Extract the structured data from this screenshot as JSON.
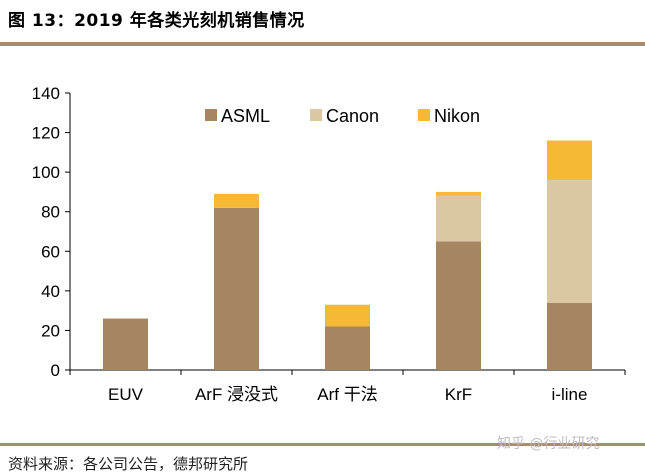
{
  "page": {
    "title": "图 13：2019 年各类光刻机销售情况",
    "source": "资料来源：各公司公告，德邦研究所",
    "watermark": "知乎 @行业研究"
  },
  "chart_data": {
    "type": "bar",
    "stacked": true,
    "categories": [
      "EUV",
      "ArF 浸没式",
      "Arf 干法",
      "KrF",
      "i-line"
    ],
    "series": [
      {
        "name": "ASML",
        "color": "#a68660",
        "values": [
          26,
          82,
          22,
          65,
          34
        ]
      },
      {
        "name": "Canon",
        "color": "#dbc8a3",
        "values": [
          0,
          0,
          0,
          23,
          62
        ]
      },
      {
        "name": "Nikon",
        "color": "#f5b935",
        "values": [
          0,
          7,
          11,
          2,
          20
        ]
      }
    ],
    "ylim": [
      0,
      140
    ],
    "yticks": [
      0,
      20,
      40,
      60,
      80,
      100,
      120,
      140
    ],
    "legend": "top",
    "grid": false,
    "title": "",
    "xlabel": "",
    "ylabel": ""
  }
}
